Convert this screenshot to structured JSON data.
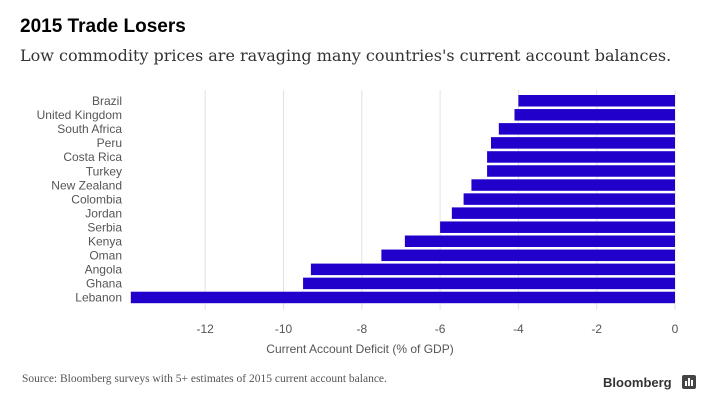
{
  "title": "2015 Trade Losers",
  "subtitle": "Low commodity prices are ravaging many countries's current account balances.",
  "source": "Source: Bloomberg surveys with 5+ estimates of 2015 current account balance.",
  "brand": "Bloomberg",
  "chart_data": {
    "type": "bar",
    "orientation": "horizontal",
    "categories": [
      "Brazil",
      "United Kingdom",
      "South Africa",
      "Peru",
      "Costa Rica",
      "Turkey",
      "New Zealand",
      "Colombia",
      "Jordan",
      "Serbia",
      "Kenya",
      "Oman",
      "Angola",
      "Ghana",
      "Lebanon"
    ],
    "values": [
      -4.0,
      -4.1,
      -4.5,
      -4.7,
      -4.8,
      -4.8,
      -5.2,
      -5.4,
      -5.7,
      -6.0,
      -6.9,
      -7.5,
      -9.3,
      -9.5,
      -13.9
    ],
    "xlabel": "Current Account Deficit (% of GDP)",
    "xticks": [
      -12,
      -10,
      -8,
      -6,
      -4,
      -2,
      0
    ],
    "xlim": [
      -14,
      0
    ],
    "grid": true,
    "bar_color": "#2200cc"
  }
}
